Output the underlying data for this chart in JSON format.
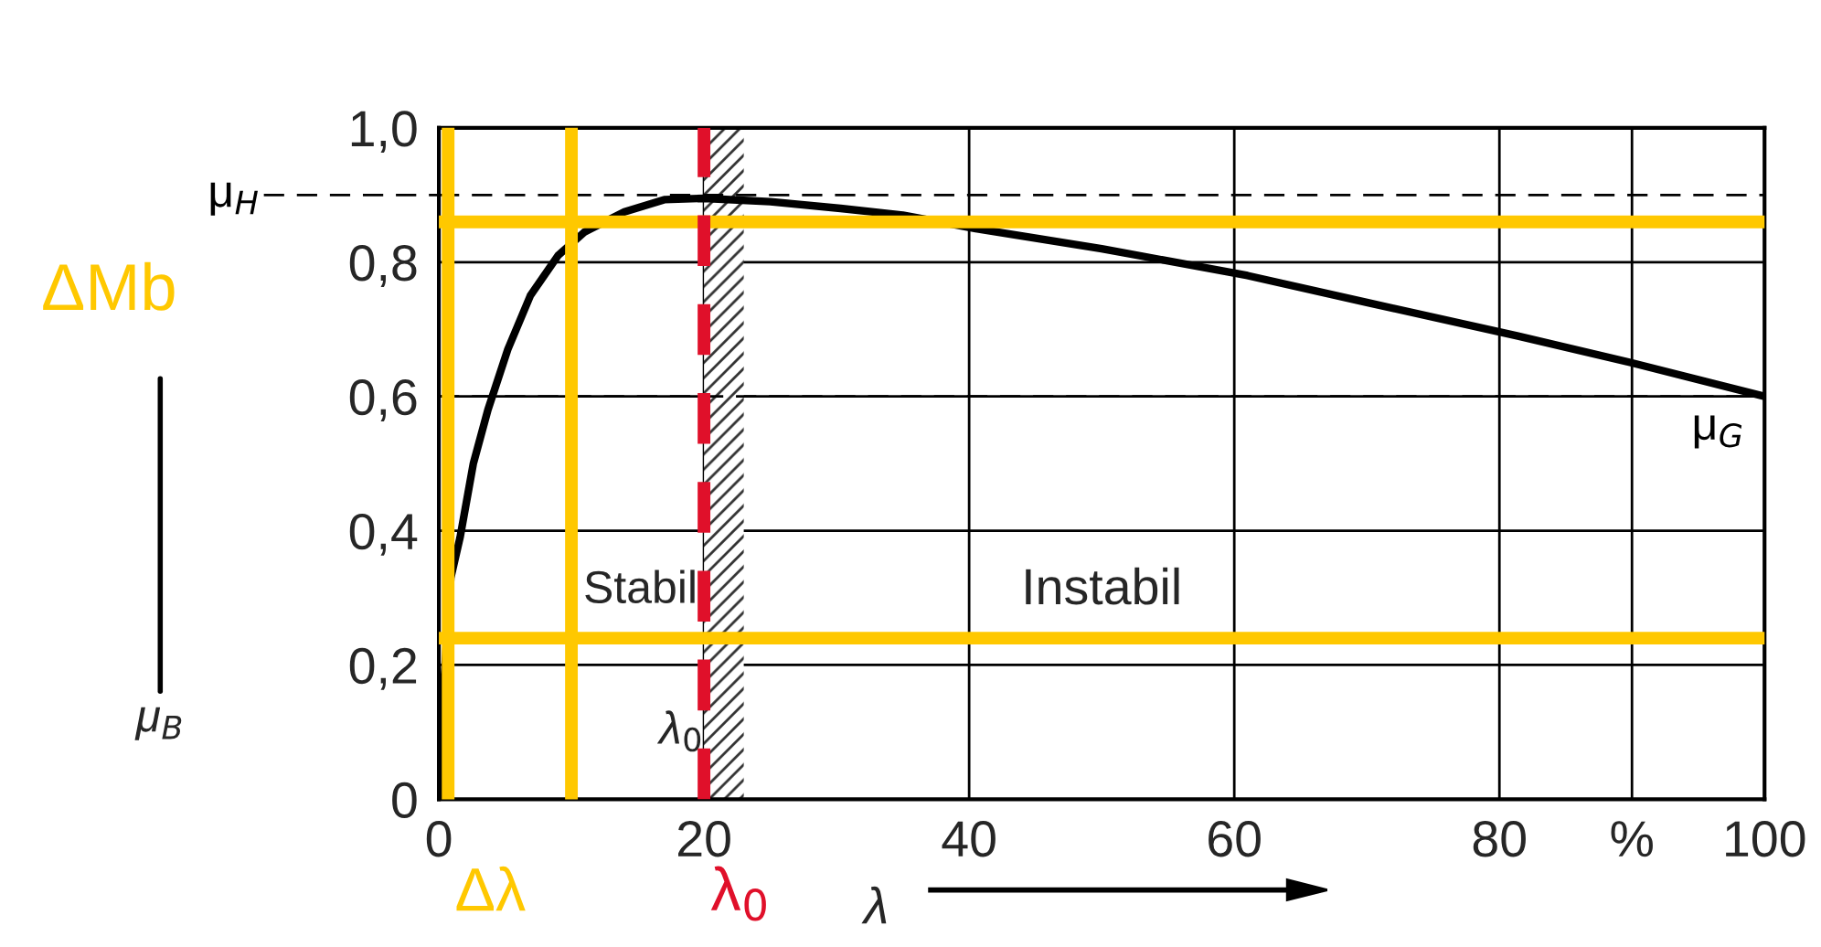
{
  "chart_data": {
    "type": "line",
    "x": [
      0,
      0.3,
      0.9,
      1.6,
      2.6,
      3.7,
      5.2,
      6.9,
      9,
      11,
      14,
      17,
      20,
      25,
      30.3,
      35,
      40.5,
      50,
      61,
      70,
      81.4,
      90,
      100
    ],
    "series": [
      {
        "color": "#000000",
        "values": [
          0,
          0.15,
          0.33,
          0.39,
          0.5,
          0.58,
          0.67,
          0.75,
          0.81,
          0.845,
          0.875,
          0.893,
          0.895,
          0.89,
          0.88,
          0.87,
          0.85,
          0.82,
          0.78,
          0.74,
          0.69,
          0.65,
          0.6
        ]
      }
    ],
    "xlim": [
      0,
      100
    ],
    "ylim": [
      0,
      1.0
    ],
    "xticks": [
      0,
      20,
      40,
      60,
      80,
      {
        "value": 90,
        "label": "%"
      },
      100
    ],
    "yticks": [
      0,
      {
        "value": 0.2,
        "label": "0,2"
      },
      {
        "value": 0.4,
        "label": "0,4"
      },
      {
        "value": 0.6,
        "label": "0,6"
      },
      {
        "value": 0.8,
        "label": "0,8"
      },
      {
        "value": 1.0,
        "label": "1,0"
      }
    ],
    "xlabel": "λ",
    "grid": true,
    "line_style": "solid",
    "marker": "none",
    "bands": [
      {
        "axis": "x",
        "from": 20,
        "to": 23,
        "label": "λ$_{0}$",
        "color": "#333333"
      }
    ],
    "ref_lines": [
      {
        "axis": "y",
        "value": 0.9,
        "label": "μ$_{H}$",
        "color": "#000000",
        "line_style": "dashed"
      },
      {
        "axis": "y",
        "value": 0.6,
        "label": "μ$_{G}$",
        "color": "#000000",
        "line_style": "dashed"
      },
      {
        "axis": "y",
        "value": 0.86,
        "label": "ΔMb",
        "color": "#ffc800",
        "line_style": "solid"
      },
      {
        "axis": "y",
        "value": 0.24,
        "color": "#ffc800",
        "line_style": "solid"
      },
      {
        "axis": "x",
        "value": 0.7,
        "label": "Δλ",
        "color": "#ffc800",
        "line_style": "solid"
      },
      {
        "axis": "x",
        "value": 10,
        "color": "#ffc800",
        "line_style": "solid"
      },
      {
        "axis": "x",
        "value": 20,
        "label": "λ$_{0}$",
        "color": "#e0102a",
        "line_style": "dashed"
      }
    ],
    "annotations": [
      "Stabil",
      "Instabil",
      "μ$_{B}$"
    ]
  }
}
